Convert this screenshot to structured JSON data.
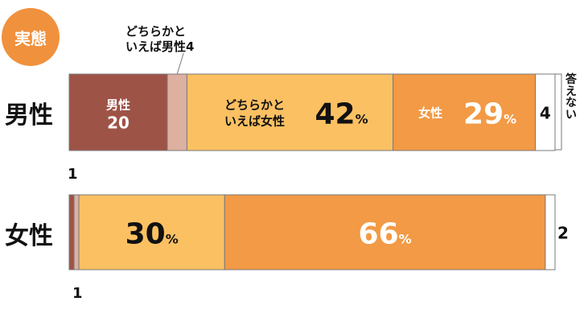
{
  "badge_text": "実態",
  "colors": {
    "male": "#9e5347",
    "lean_male": "#ddb0a0",
    "lean_female": "#fbc062",
    "female": "#f29a45",
    "no_answer": "#ffffff",
    "border": "#7a7a7a",
    "text_dark": "#111111",
    "text_light": "#ffffff"
  },
  "chart_data": {
    "type": "bar",
    "orientation": "horizontal-stacked-100",
    "categories": [
      "男性",
      "女性"
    ],
    "series": [
      {
        "name": "男性",
        "values": [
          20,
          1
        ]
      },
      {
        "name": "どちらかといえば男性",
        "values": [
          4,
          1
        ]
      },
      {
        "name": "どちらかといえば女性",
        "values": [
          42,
          30
        ]
      },
      {
        "name": "女性",
        "values": [
          29,
          66
        ]
      },
      {
        "name": "答えない",
        "values": [
          4,
          2
        ]
      }
    ],
    "segment_labels": {
      "male_row": {
        "male_name": "男性",
        "male_value": "20",
        "lean_female_name_line1": "どちらかと",
        "lean_female_name_line2": "いえば女性",
        "lean_female_value": "42",
        "female_name": "女性",
        "female_value": "29",
        "no_answer_value": "4",
        "percent": "%"
      },
      "female_row": {
        "lean_female_value": "30",
        "female_value": "66",
        "percent": "%",
        "no_answer_value": "2"
      }
    },
    "callouts": {
      "lean_male_line1": "どちらかと",
      "lean_male_line2": "いえば男性4",
      "no_answer_label": "答えない",
      "female_row_male_value": "1",
      "female_row_lean_male_value": "1"
    }
  }
}
